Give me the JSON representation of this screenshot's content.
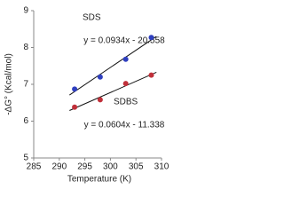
{
  "chart_data": {
    "type": "scatter",
    "xlabel": "Temperature (K)",
    "ylabel": "-ΔG° (Kcal/mol)",
    "x": [
      293,
      298,
      303,
      308
    ],
    "series": [
      {
        "name": "SDS",
        "color": "#2f3fbf",
        "values": [
          6.87,
          7.2,
          7.68,
          8.27
        ]
      },
      {
        "name": "SDBS",
        "color": "#c0303a",
        "values": [
          6.38,
          6.58,
          7.02,
          7.25
        ]
      }
    ],
    "annotations": [
      "y = 0.0934x - 20.558",
      "y = 0.0604x - 11.338"
    ],
    "xlim": [
      285,
      310
    ],
    "xticks": [
      285,
      290,
      295,
      300,
      305,
      310
    ],
    "ylim": [
      5,
      9
    ],
    "yticks": [
      5,
      6,
      7,
      8,
      9
    ],
    "trendline": true
  }
}
